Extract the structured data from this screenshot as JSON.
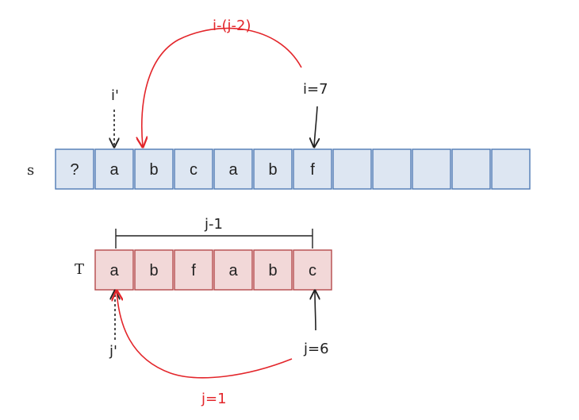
{
  "s_row": {
    "label": "s",
    "cells": [
      "?",
      "a",
      "b",
      "c",
      "a",
      "b",
      "f",
      "",
      "",
      "",
      "",
      ""
    ],
    "fill": "#dde6f2",
    "stroke": "#4f7ab5"
  },
  "t_row": {
    "label": "T",
    "cells": [
      "a",
      "b",
      "f",
      "a",
      "b",
      "c"
    ],
    "fill": "#f2d8d8",
    "stroke": "#b5494b"
  },
  "labels": {
    "i_prime": "i'",
    "i_eq": "i=7",
    "shift_expr": "i-(j-2)",
    "j_minus_1": "j-1",
    "j_prime": "j'",
    "j_eq": "j=6",
    "j_eq_1": "j=1"
  },
  "colors": {
    "accent_red": "#e3262b",
    "ink": "#222222"
  }
}
